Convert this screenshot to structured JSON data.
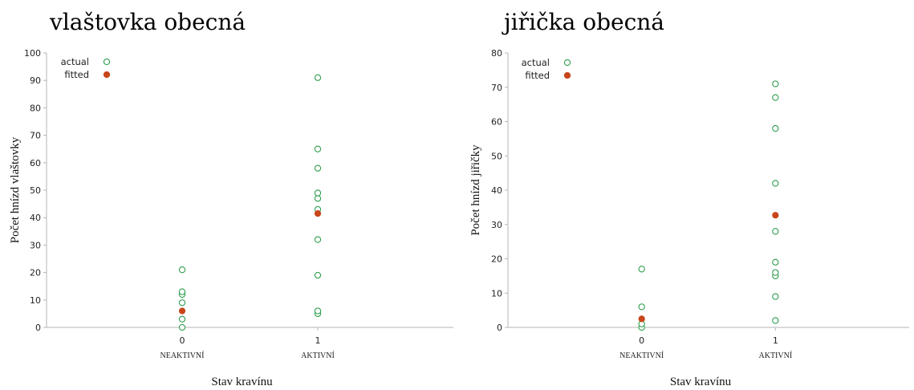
{
  "chart_data": [
    {
      "type": "scatter",
      "title": "vlaštovka obecná",
      "xlabel": "Stav kravínu",
      "ylabel": "Počet hnízd vlaštovky",
      "ylim": [
        0,
        100
      ],
      "yticks": [
        0,
        10,
        20,
        30,
        40,
        50,
        60,
        70,
        80,
        90,
        100
      ],
      "xlim": [
        -1,
        2
      ],
      "xticks": [
        0,
        1
      ],
      "categories": [
        "NEAKTIVNÍ",
        "AKTIVNÍ"
      ],
      "legend_position": "top-left",
      "grid": false,
      "series": [
        {
          "name": "actual",
          "marker": "open-circle",
          "color": "#2e9e4f",
          "points": [
            {
              "x": 0,
              "y": 0
            },
            {
              "x": 0,
              "y": 3
            },
            {
              "x": 0,
              "y": 9
            },
            {
              "x": 0,
              "y": 12
            },
            {
              "x": 0,
              "y": 13
            },
            {
              "x": 0,
              "y": 21
            },
            {
              "x": 1,
              "y": 5
            },
            {
              "x": 1,
              "y": 6
            },
            {
              "x": 1,
              "y": 19
            },
            {
              "x": 1,
              "y": 32
            },
            {
              "x": 1,
              "y": 43
            },
            {
              "x": 1,
              "y": 47
            },
            {
              "x": 1,
              "y": 49
            },
            {
              "x": 1,
              "y": 58
            },
            {
              "x": 1,
              "y": 65
            },
            {
              "x": 1,
              "y": 91
            }
          ]
        },
        {
          "name": "fitted",
          "marker": "filled-circle",
          "color": "#c8461a",
          "points": [
            {
              "x": 0,
              "y": 6
            },
            {
              "x": 1,
              "y": 41.5
            }
          ]
        }
      ]
    },
    {
      "type": "scatter",
      "title": "jiřička obecná",
      "xlabel": "Stav kravínu",
      "ylabel": "Počet hnízd jiřičky",
      "ylim": [
        0,
        80
      ],
      "yticks": [
        0,
        10,
        20,
        30,
        40,
        50,
        60,
        70,
        80
      ],
      "xlim": [
        -1,
        2
      ],
      "xticks": [
        0,
        1
      ],
      "categories": [
        "NEAKTIVNÍ",
        "AKTIVNÍ"
      ],
      "legend_position": "top-left",
      "grid": false,
      "series": [
        {
          "name": "actual",
          "marker": "open-circle",
          "color": "#2e9e4f",
          "points": [
            {
              "x": 0,
              "y": 0
            },
            {
              "x": 0,
              "y": 1
            },
            {
              "x": 0,
              "y": 6
            },
            {
              "x": 0,
              "y": 17
            },
            {
              "x": 1,
              "y": 2
            },
            {
              "x": 1,
              "y": 9
            },
            {
              "x": 1,
              "y": 15
            },
            {
              "x": 1,
              "y": 16
            },
            {
              "x": 1,
              "y": 19
            },
            {
              "x": 1,
              "y": 28
            },
            {
              "x": 1,
              "y": 42
            },
            {
              "x": 1,
              "y": 58
            },
            {
              "x": 1,
              "y": 67
            },
            {
              "x": 1,
              "y": 71
            }
          ]
        },
        {
          "name": "fitted",
          "marker": "filled-circle",
          "color": "#c8461a",
          "points": [
            {
              "x": 0,
              "y": 2.5
            },
            {
              "x": 1,
              "y": 32.7
            }
          ]
        }
      ]
    }
  ]
}
